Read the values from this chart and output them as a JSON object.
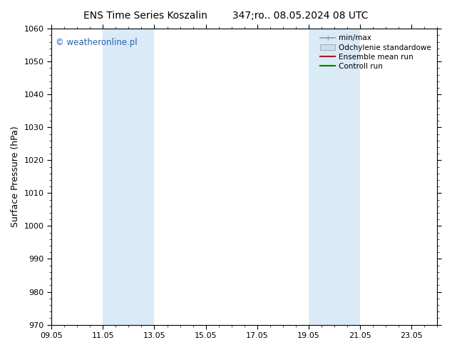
{
  "title_left": "ENS Time Series Koszalin",
  "title_right": "347;ro.. 08.05.2024 08 UTC",
  "ylabel": "Surface Pressure (hPa)",
  "ylim": [
    970,
    1060
  ],
  "yticks": [
    970,
    980,
    990,
    1000,
    1010,
    1020,
    1030,
    1040,
    1050,
    1060
  ],
  "xlim": [
    0,
    15
  ],
  "xtick_labels": [
    "09.05",
    "11.05",
    "13.05",
    "15.05",
    "17.05",
    "19.05",
    "21.05",
    "23.05"
  ],
  "xtick_positions": [
    0,
    2,
    4,
    6,
    8,
    10,
    12,
    14
  ],
  "shaded_regions": [
    {
      "xstart": 2.0,
      "xend": 4.0,
      "color": "#daeaf7"
    },
    {
      "xstart": 10.0,
      "xend": 12.0,
      "color": "#daeaf7"
    }
  ],
  "watermark": "© weatheronline.pl",
  "watermark_color": "#1565c0",
  "legend_entries": [
    {
      "label": "min/max",
      "color": "#999999",
      "lw": 1.2
    },
    {
      "label": "Odchylenie standardowe",
      "color": "#c8dff0",
      "lw": 8
    },
    {
      "label": "Ensemble mean run",
      "color": "#cc0000",
      "lw": 1.5
    },
    {
      "label": "Controll run",
      "color": "#007700",
      "lw": 1.5
    }
  ],
  "bg_color": "#ffffff",
  "plot_bg_color": "#ffffff",
  "border_color": "#000000",
  "title_fontsize": 10,
  "ylabel_fontsize": 9,
  "tick_fontsize": 8,
  "legend_fontsize": 7.5,
  "watermark_fontsize": 8.5
}
